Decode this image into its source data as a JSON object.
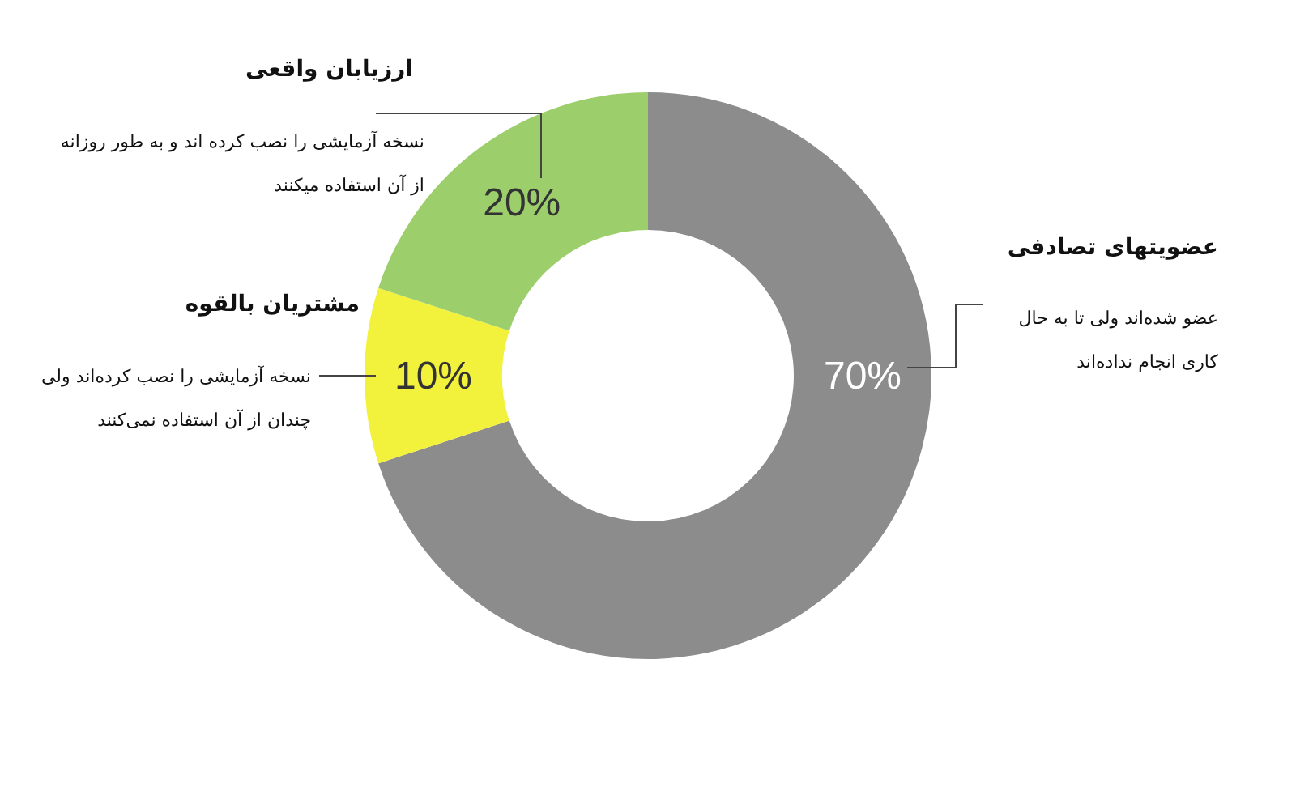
{
  "chart_data": {
    "type": "donut",
    "categories": [
      "عضویتهای تصادفی",
      "مشتریان بالقوه",
      "ارزیابان واقعی"
    ],
    "values": [
      70,
      10,
      20
    ],
    "colors": [
      "#8c8c8c",
      "#f2f23c",
      "#9ccf6b"
    ],
    "value_labels": [
      "70%",
      "10%",
      "20%"
    ],
    "annotations": [
      "عضو شده‌اند ولی تا به حال کاری انجام نداده‌اند",
      "نسخه آزمایشی را نصب کرده‌اند ولی چندان از آن استفاده نمی‌کنند",
      "نسخه آزمایشی را نصب کرده اند و به طور روزانه از آن استفاده میکنند"
    ]
  }
}
